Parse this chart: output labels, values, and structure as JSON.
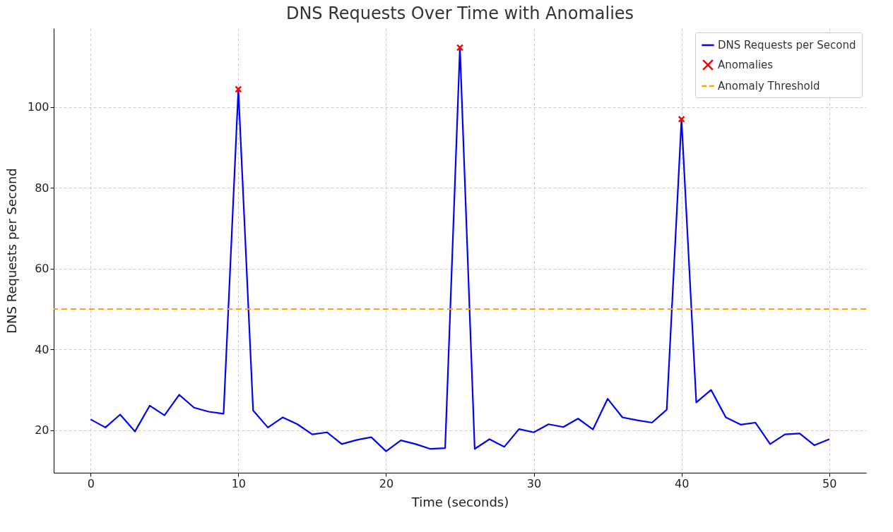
{
  "chart_data": {
    "type": "line",
    "title": "DNS Requests Over Time with Anomalies",
    "xlabel": "Time (seconds)",
    "ylabel": "DNS Requests per Second",
    "xlim": [
      -2.5,
      52.5
    ],
    "ylim": [
      9.5,
      119.5
    ],
    "xticks": [
      0,
      10,
      20,
      30,
      40,
      50
    ],
    "yticks": [
      20,
      40,
      60,
      80,
      100
    ],
    "grid": true,
    "legend": "top right",
    "series": [
      {
        "name": "DNS Requests per Second",
        "type": "line",
        "color": "#0000ff",
        "marker": "none",
        "x": [
          0,
          1,
          2,
          3,
          4,
          5,
          6,
          7,
          8,
          9,
          10,
          11,
          12,
          13,
          14,
          15,
          16,
          17,
          18,
          19,
          20,
          21,
          22,
          23,
          24,
          25,
          26,
          27,
          28,
          29,
          30,
          31,
          32,
          33,
          34,
          35,
          36,
          37,
          38,
          39,
          40,
          41,
          42,
          43,
          44,
          45,
          46,
          47,
          48,
          49,
          50
        ],
        "values": [
          22.7,
          20.7,
          23.9,
          19.7,
          26.1,
          23.7,
          28.8,
          25.6,
          24.6,
          24.1,
          104.4,
          24.9,
          20.7,
          23.2,
          21.5,
          19.0,
          19.5,
          16.6,
          17.6,
          18.3,
          14.8,
          17.5,
          16.6,
          15.4,
          15.6,
          114.7,
          15.4,
          17.8,
          15.9,
          20.3,
          19.5,
          21.5,
          20.8,
          22.9,
          20.2,
          27.8,
          23.2,
          22.5,
          21.9,
          25.1,
          97.0,
          26.9,
          30.0,
          23.2,
          21.4,
          21.9,
          16.6,
          19.0,
          19.2,
          16.3,
          17.8
        ]
      },
      {
        "name": "Anomalies",
        "type": "scatter",
        "color": "#ff0000",
        "marker": "cross",
        "x": [
          10,
          25,
          40
        ],
        "values": [
          104.4,
          114.7,
          97.0
        ]
      }
    ],
    "ref_lines": [
      {
        "axis": "y",
        "value": 50,
        "label": "Anomaly Threshold",
        "color": "#ffa500",
        "line_style": "dashed"
      }
    ]
  }
}
